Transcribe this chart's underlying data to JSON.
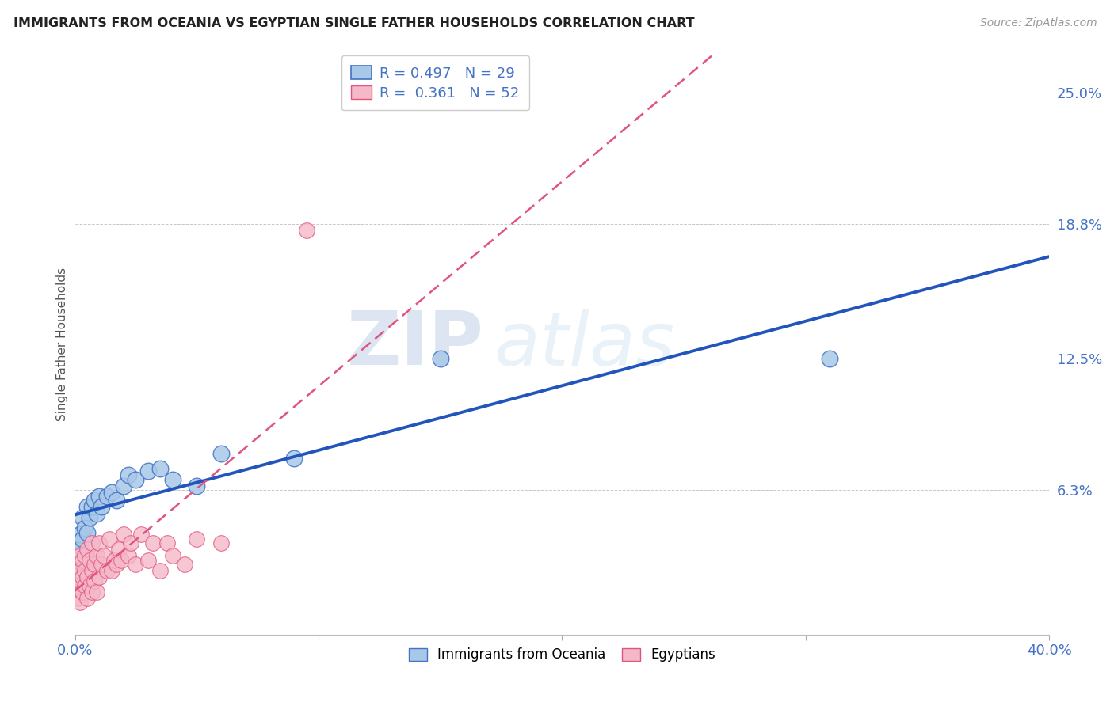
{
  "title": "IMMIGRANTS FROM OCEANIA VS EGYPTIAN SINGLE FATHER HOUSEHOLDS CORRELATION CHART",
  "source_text": "Source: ZipAtlas.com",
  "ylabel": "Single Father Households",
  "xlim": [
    0.0,
    0.4
  ],
  "ylim": [
    -0.005,
    0.268
  ],
  "yticks": [
    0.0,
    0.063,
    0.125,
    0.188,
    0.25
  ],
  "ytick_labels": [
    "",
    "6.3%",
    "12.5%",
    "18.8%",
    "25.0%"
  ],
  "xticks": [
    0.0,
    0.1,
    0.2,
    0.3,
    0.4
  ],
  "xtick_labels": [
    "0.0%",
    "",
    "",
    "",
    "40.0%"
  ],
  "background_color": "#ffffff",
  "grid_color": "#c8c8c8",
  "title_color": "#222222",
  "axis_label_color": "#555555",
  "tick_color": "#4472c4",
  "series1_color": "#a8c8e8",
  "series1_edge": "#4472c4",
  "series2_color": "#f5b8c8",
  "series2_edge": "#e05580",
  "line1_color": "#2255bb",
  "line2_color": "#e05580",
  "R1": 0.497,
  "N1": 29,
  "R2": 0.361,
  "N2": 52,
  "legend1_label": "Immigrants from Oceania",
  "legend2_label": "Egyptians",
  "watermark_zip": "ZIP",
  "watermark_atlas": "atlas",
  "blue_points_x": [
    0.001,
    0.001,
    0.002,
    0.002,
    0.003,
    0.003,
    0.004,
    0.005,
    0.005,
    0.006,
    0.007,
    0.008,
    0.009,
    0.01,
    0.011,
    0.013,
    0.015,
    0.017,
    0.02,
    0.022,
    0.025,
    0.03,
    0.035,
    0.04,
    0.05,
    0.06,
    0.09,
    0.15,
    0.31
  ],
  "blue_points_y": [
    0.03,
    0.038,
    0.035,
    0.042,
    0.04,
    0.05,
    0.045,
    0.043,
    0.055,
    0.05,
    0.055,
    0.058,
    0.052,
    0.06,
    0.055,
    0.06,
    0.062,
    0.058,
    0.065,
    0.07,
    0.068,
    0.072,
    0.073,
    0.068,
    0.065,
    0.08,
    0.078,
    0.125,
    0.125
  ],
  "pink_points_x": [
    0.0005,
    0.001,
    0.001,
    0.001,
    0.001,
    0.002,
    0.002,
    0.002,
    0.002,
    0.003,
    0.003,
    0.003,
    0.004,
    0.004,
    0.004,
    0.005,
    0.005,
    0.005,
    0.006,
    0.006,
    0.007,
    0.007,
    0.007,
    0.008,
    0.008,
    0.009,
    0.009,
    0.01,
    0.01,
    0.011,
    0.012,
    0.013,
    0.014,
    0.015,
    0.016,
    0.017,
    0.018,
    0.019,
    0.02,
    0.022,
    0.023,
    0.025,
    0.027,
    0.03,
    0.032,
    0.035,
    0.038,
    0.04,
    0.045,
    0.05,
    0.06,
    0.095
  ],
  "pink_points_y": [
    0.015,
    0.012,
    0.018,
    0.022,
    0.03,
    0.01,
    0.02,
    0.025,
    0.032,
    0.015,
    0.022,
    0.03,
    0.018,
    0.025,
    0.032,
    0.012,
    0.022,
    0.035,
    0.018,
    0.03,
    0.015,
    0.025,
    0.038,
    0.02,
    0.028,
    0.015,
    0.032,
    0.022,
    0.038,
    0.028,
    0.032,
    0.025,
    0.04,
    0.025,
    0.03,
    0.028,
    0.035,
    0.03,
    0.042,
    0.032,
    0.038,
    0.028,
    0.042,
    0.03,
    0.038,
    0.025,
    0.038,
    0.032,
    0.028,
    0.04,
    0.038,
    0.185
  ]
}
